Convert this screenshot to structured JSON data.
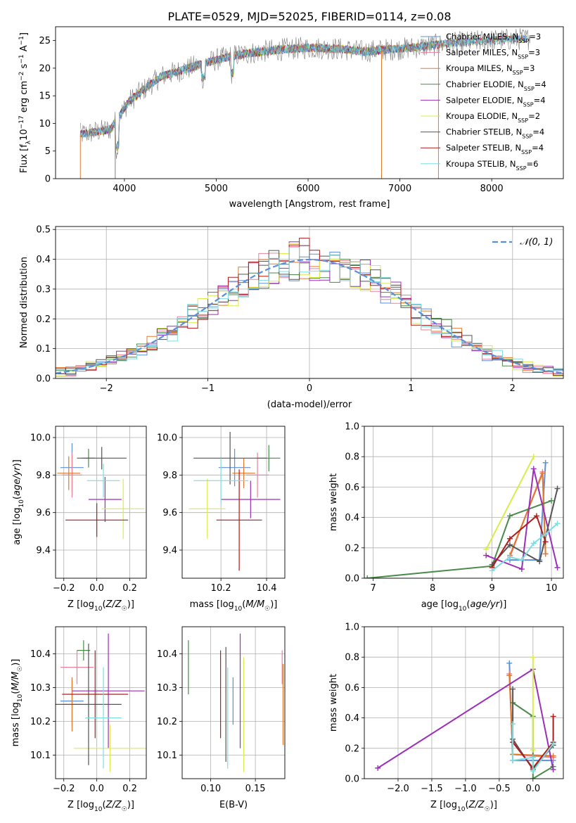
{
  "figure": {
    "title": "PLATE=0529, MJD=52025, FIBERID=0114, z=0.08"
  },
  "colors": {
    "Chabrier MILES": "#5b8fd9",
    "Salpeter MILES": "#e9829a",
    "Kroupa MILES": "#e07a2e",
    "Chabrier ELODIE": "#4a8a4a",
    "Salpeter ELODIE": "#9b2fb8",
    "Kroupa ELODIE": "#d9ec4a",
    "Chabrier STELIB": "#555555",
    "Salpeter STELIB": "#b01c1c",
    "Kroupa STELIB": "#7fdde0",
    "spectrum": "#808080",
    "gauss": "#5b8fd9"
  },
  "chart_data": [
    {
      "name": "spectrum",
      "type": "line",
      "xlabel": "wavelength [Angstrom, rest frame]",
      "ylabel": "Flux [f_λ10^-17 erg cm^-2 s^-1 A^-1]",
      "xlim": [
        3250,
        8780
      ],
      "ylim": [
        0,
        27.5
      ],
      "xticks": [
        "4000",
        "5000",
        "6000",
        "7000",
        "8000"
      ],
      "yticks": [
        "0",
        "5",
        "10",
        "15",
        "20",
        "25"
      ],
      "legend_position": "right",
      "legend": [
        {
          "model": "Chabrier MILES",
          "nssp": "3"
        },
        {
          "model": "Salpeter MILES",
          "nssp": "3"
        },
        {
          "model": "Kroupa MILES",
          "nssp": "3"
        },
        {
          "model": "Chabrier ELODIE",
          "nssp": "4"
        },
        {
          "model": "Salpeter ELODIE",
          "nssp": "4"
        },
        {
          "model": "Kroupa ELODIE",
          "nssp": "2"
        },
        {
          "model": "Chabrier STELIB",
          "nssp": "4"
        },
        {
          "model": "Salpeter STELIB",
          "nssp": "4"
        },
        {
          "model": "Kroupa STELIB",
          "nssp": "6"
        }
      ],
      "continuum": {
        "x": [
          3520,
          3700,
          3850,
          3950,
          4050,
          4200,
          4400,
          4600,
          4800,
          5000,
          5200,
          5400,
          5600,
          5800,
          6000,
          6200,
          6400,
          6600,
          6800,
          7000,
          7200,
          7400,
          7600,
          7800,
          8000,
          8200,
          8400
        ],
        "y": [
          8.0,
          8.5,
          9.0,
          11.5,
          14.0,
          16.0,
          18.5,
          19.5,
          20.5,
          21.5,
          22.3,
          22.8,
          23.2,
          23.5,
          23.7,
          23.6,
          23.4,
          23.0,
          23.3,
          23.5,
          23.8,
          24.2,
          24.5,
          24.8,
          25.0,
          25.2,
          25.3
        ]
      }
    },
    {
      "name": "residuals",
      "type": "histogram",
      "xlabel": "(data-model)/error",
      "ylabel": "Normed distribution",
      "xlim": [
        -2.5,
        2.5
      ],
      "ylim": [
        0,
        0.51
      ],
      "xticks": [
        "−2",
        "−1",
        "0",
        "1",
        "2"
      ],
      "yticks": [
        "0.0",
        "0.1",
        "0.2",
        "0.3",
        "0.4",
        "0.5"
      ],
      "gauss_label": "𝒩(0, 1)",
      "bin_width": 0.1
    },
    {
      "name": "age-vs-Z",
      "type": "errorbar",
      "xlabel": "Z [log10(Z/Z☉)]",
      "ylabel": "age  [log10(age/yr)]",
      "xlim": [
        -0.25,
        0.3
      ],
      "ylim": [
        9.25,
        10.06
      ],
      "xticks": [
        "−0.2",
        "0.0",
        "0.2"
      ],
      "yticks": [
        "9.4",
        "9.6",
        "9.8",
        "10.0"
      ],
      "points": [
        {
          "model": "Chabrier MILES",
          "x": -0.15,
          "xerr": 0.07,
          "y": 9.84,
          "yerr": 0.13
        },
        {
          "model": "Salpeter MILES",
          "x": -0.15,
          "xerr": 0.06,
          "y": 9.8,
          "yerr": 0.12
        },
        {
          "model": "Kroupa MILES",
          "x": -0.17,
          "xerr": 0.07,
          "y": 9.81,
          "yerr": 0.09
        },
        {
          "model": "Chabrier ELODIE",
          "x": -0.05,
          "xerr": 0.04,
          "y": 9.89,
          "yerr": 0.05
        },
        {
          "model": "Salpeter ELODIE",
          "x": 0.05,
          "xerr": 0.1,
          "y": 9.67,
          "yerr": 0.12
        },
        {
          "model": "Kroupa ELODIE",
          "x": 0.16,
          "xerr": 0.13,
          "y": 9.62,
          "yerr": 0.16
        },
        {
          "model": "Chabrier STELIB",
          "x": 0.03,
          "xerr": 0.15,
          "y": 9.89,
          "yerr": 0.06
        },
        {
          "model": "Salpeter STELIB",
          "x": 0.0,
          "xerr": 0.19,
          "y": 9.56,
          "yerr": 0.09
        },
        {
          "model": "Kroupa STELIB",
          "x": 0.04,
          "xerr": 0.1,
          "y": 9.77,
          "yerr": 0.09
        }
      ]
    },
    {
      "name": "age-vs-mass",
      "type": "errorbar",
      "xlabel": "mass [log10(M/M☉)]",
      "ylabel": "",
      "xlim": [
        10.03,
        10.48
      ],
      "ylim": [
        9.25,
        10.06
      ],
      "xticks": [
        "10.2",
        "10.4"
      ],
      "yticks": [
        "9.4",
        "9.6",
        "9.8",
        "10.0"
      ],
      "points": [
        {
          "model": "Chabrier MILES",
          "x": 10.26,
          "xerr": 0.07,
          "y": 9.84,
          "yerr": 0.1
        },
        {
          "model": "Salpeter MILES",
          "x": 10.36,
          "xerr": 0.05,
          "y": 9.8,
          "yerr": 0.12
        },
        {
          "model": "Kroupa MILES",
          "x": 10.3,
          "xerr": 0.05,
          "y": 9.81,
          "yerr": 0.08
        },
        {
          "model": "Chabrier ELODIE",
          "x": 10.41,
          "xerr": 0.05,
          "y": 9.89,
          "yerr": 0.07
        },
        {
          "model": "Salpeter ELODIE",
          "x": 10.33,
          "xerr": 0.13,
          "y": 9.67,
          "yerr": 0.1
        },
        {
          "model": "Kroupa ELODIE",
          "x": 10.14,
          "xerr": 0.08,
          "y": 9.62,
          "yerr": 0.16
        },
        {
          "model": "Chabrier STELIB",
          "x": 10.24,
          "xerr": 0.16,
          "y": 9.89,
          "yerr": 0.14
        },
        {
          "model": "Salpeter STELIB",
          "x": 10.28,
          "xerr": 0.1,
          "y": 9.56,
          "yerr": 0.27
        },
        {
          "model": "Kroupa STELIB",
          "x": 10.2,
          "xerr": 0.12,
          "y": 9.77,
          "yerr": 0.12
        }
      ]
    },
    {
      "name": "weight-vs-age",
      "type": "line",
      "xlabel": "age  [log10(age/yr)]",
      "ylabel": "mass weight",
      "xlim": [
        6.85,
        10.2
      ],
      "ylim": [
        0,
        1.0
      ],
      "xticks": [
        "7",
        "8",
        "9",
        "10"
      ],
      "yticks": [
        "0.0",
        "0.2",
        "0.4",
        "0.6",
        "0.8",
        "1.0"
      ],
      "series": [
        {
          "model": "Chabrier MILES",
          "x": [
            9.3,
            9.8,
            9.9
          ],
          "y": [
            0.12,
            0.12,
            0.76
          ]
        },
        {
          "model": "Salpeter MILES",
          "x": [
            9.3,
            9.85,
            9.9
          ],
          "y": [
            0.14,
            0.7,
            0.16
          ]
        },
        {
          "model": "Kroupa MILES",
          "x": [
            9.3,
            9.85,
            9.9
          ],
          "y": [
            0.15,
            0.69,
            0.16
          ]
        },
        {
          "model": "Chabrier ELODIE",
          "x": [
            6.9,
            9.0,
            9.3,
            10.0
          ],
          "y": [
            0.0,
            0.08,
            0.41,
            0.51
          ]
        },
        {
          "model": "Salpeter ELODIE",
          "x": [
            8.9,
            9.5,
            9.7,
            10.1
          ],
          "y": [
            0.15,
            0.06,
            0.72,
            0.07
          ]
        },
        {
          "model": "Kroupa ELODIE",
          "x": [
            8.9,
            9.7
          ],
          "y": [
            0.19,
            0.8
          ]
        },
        {
          "model": "Chabrier STELIB",
          "x": [
            9.0,
            9.3,
            9.8,
            10.1
          ],
          "y": [
            0.09,
            0.22,
            0.11,
            0.59
          ]
        },
        {
          "model": "Salpeter STELIB",
          "x": [
            9.0,
            9.3,
            9.75,
            9.9
          ],
          "y": [
            0.07,
            0.26,
            0.41,
            0.24
          ]
        },
        {
          "model": "Kroupa STELIB",
          "x": [
            9.0,
            9.3,
            9.5,
            9.7,
            9.9,
            10.1
          ],
          "y": [
            0.05,
            0.14,
            0.12,
            0.23,
            0.29,
            0.36
          ]
        }
      ]
    },
    {
      "name": "mass-vs-Z",
      "type": "errorbar",
      "xlabel": "Z [log10(Z/Z☉)]",
      "ylabel": "mass [log10(M/M☉)]",
      "xlim": [
        -0.25,
        0.3
      ],
      "ylim": [
        10.03,
        10.48
      ],
      "xticks": [
        "−0.2",
        "0.0",
        "0.2"
      ],
      "yticks": [
        "10.1",
        "10.2",
        "10.3",
        "10.4"
      ],
      "points": [
        {
          "model": "Chabrier MILES",
          "x": -0.15,
          "xerr": 0.07,
          "y": 10.26,
          "yerr": 0.07
        },
        {
          "model": "Salpeter MILES",
          "x": -0.12,
          "xerr": 0.1,
          "y": 10.36,
          "yerr": 0.05
        },
        {
          "model": "Kroupa MILES",
          "x": -0.15,
          "xerr": 0.06,
          "y": 10.25,
          "yerr": 0.08
        },
        {
          "model": "Chabrier ELODIE",
          "x": -0.08,
          "xerr": 0.04,
          "y": 10.41,
          "yerr": 0.03
        },
        {
          "model": "Salpeter ELODIE",
          "x": 0.07,
          "xerr": 0.22,
          "y": 10.29,
          "yerr": 0.17
        },
        {
          "model": "Kroupa ELODIE",
          "x": 0.08,
          "xerr": 0.22,
          "y": 10.12,
          "yerr": 0.07
        },
        {
          "model": "Chabrier STELIB",
          "x": -0.05,
          "xerr": 0.2,
          "y": 10.25,
          "yerr": 0.18
        },
        {
          "model": "Salpeter STELIB",
          "x": -0.01,
          "xerr": 0.2,
          "y": 10.28,
          "yerr": 0.13
        },
        {
          "model": "Kroupa STELIB",
          "x": 0.04,
          "xerr": 0.11,
          "y": 10.21,
          "yerr": 0.15
        }
      ]
    },
    {
      "name": "mass-vs-EBV",
      "type": "errorbar",
      "xlabel": "E(B-V)",
      "ylabel": "",
      "xlim": [
        0.068,
        0.183
      ],
      "ylim": [
        10.03,
        10.48
      ],
      "xticks": [
        "0.10",
        "0.15"
      ],
      "yticks": [
        "10.1",
        "10.2",
        "10.3",
        "10.4"
      ],
      "points": [
        {
          "model": "Chabrier MILES",
          "x": 0.125,
          "xerr": 0,
          "y": 10.26,
          "yerr": 0.07
        },
        {
          "model": "Salpeter MILES",
          "x": 0.18,
          "xerr": 0,
          "y": 10.36,
          "yerr": 0.05
        },
        {
          "model": "Kroupa MILES",
          "x": 0.181,
          "xerr": 0,
          "y": 10.25,
          "yerr": 0.12
        },
        {
          "model": "Chabrier ELODIE",
          "x": 0.075,
          "xerr": 0,
          "y": 10.36,
          "yerr": 0.08
        },
        {
          "model": "Salpeter ELODIE",
          "x": 0.133,
          "xerr": 0,
          "y": 10.29,
          "yerr": 0.17
        },
        {
          "model": "Kroupa ELODIE",
          "x": 0.137,
          "xerr": 0,
          "y": 10.22,
          "yerr": 0.17
        },
        {
          "model": "Chabrier STELIB",
          "x": 0.117,
          "xerr": 0,
          "y": 10.25,
          "yerr": 0.17
        },
        {
          "model": "Salpeter STELIB",
          "x": 0.111,
          "xerr": 0,
          "y": 10.28,
          "yerr": 0.13
        },
        {
          "model": "Kroupa STELIB",
          "x": 0.119,
          "xerr": 0,
          "y": 10.21,
          "yerr": 0.15
        }
      ]
    },
    {
      "name": "weight-vs-Z",
      "type": "line",
      "xlabel": "Z [log10(Z/Z☉)]",
      "ylabel": "mass weight",
      "xlim": [
        -2.5,
        0.45
      ],
      "ylim": [
        0,
        1.0
      ],
      "xticks": [
        "−2.0",
        "−1.5",
        "−1.0",
        "−0.5",
        "0.0"
      ],
      "yticks": [
        "0.0",
        "0.2",
        "0.4",
        "0.6",
        "0.8",
        "1.0"
      ],
      "series": [
        {
          "model": "Chabrier MILES",
          "x": [
            -0.35,
            -0.3,
            0.3
          ],
          "y": [
            0.76,
            0.12,
            0.12
          ]
        },
        {
          "model": "Salpeter MILES",
          "x": [
            -0.35,
            -0.3,
            0.3
          ],
          "y": [
            0.69,
            0.16,
            0.14
          ]
        },
        {
          "model": "Kroupa MILES",
          "x": [
            -0.35,
            -0.3,
            0.3
          ],
          "y": [
            0.68,
            0.16,
            0.15
          ]
        },
        {
          "model": "Chabrier ELODIE",
          "x": [
            -0.3,
            0.0,
            0.0,
            0.3
          ],
          "y": [
            0.5,
            0.41,
            0.0,
            0.08
          ]
        },
        {
          "model": "Salpeter ELODIE",
          "x": [
            -2.3,
            0.0,
            0.3
          ],
          "y": [
            0.07,
            0.72,
            0.06
          ]
        },
        {
          "model": "Kroupa ELODIE",
          "x": [
            0.0,
            0.0
          ],
          "y": [
            0.8,
            0.19
          ]
        },
        {
          "model": "Chabrier STELIB",
          "x": [
            -0.3,
            -0.3,
            0.0,
            0.3
          ],
          "y": [
            0.59,
            0.26,
            0.06,
            0.22
          ]
        },
        {
          "model": "Salpeter STELIB",
          "x": [
            -0.3,
            0.0,
            0.3,
            0.3
          ],
          "y": [
            0.24,
            0.07,
            0.24,
            0.41
          ]
        },
        {
          "model": "Kroupa STELIB",
          "x": [
            -0.3,
            -0.3,
            0.0,
            0.0,
            0.3
          ],
          "y": [
            0.36,
            0.12,
            0.14,
            0.05,
            0.23
          ]
        }
      ]
    }
  ]
}
